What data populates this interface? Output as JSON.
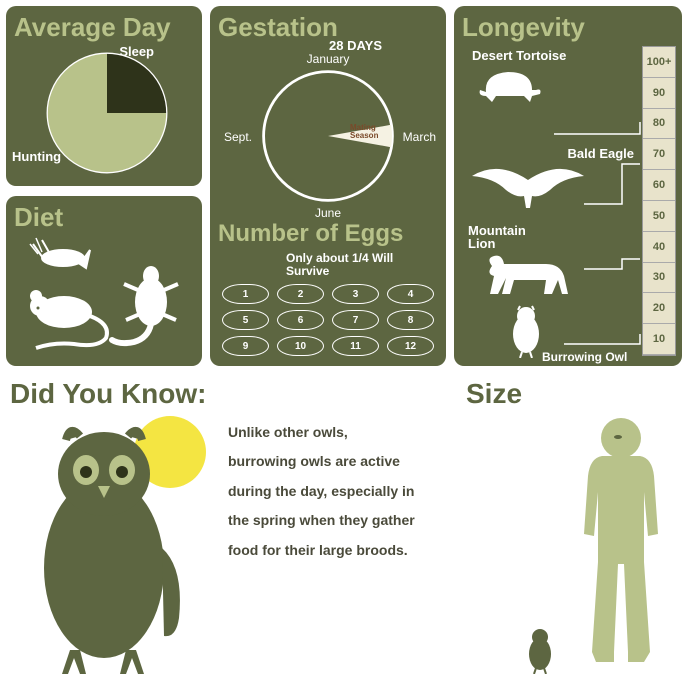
{
  "colors": {
    "olive": "#5d6641",
    "sage": "#b8c28a",
    "dark": "#2e331a",
    "white": "#ffffff",
    "cream": "#f5f2e3",
    "yellow": "#f4e542"
  },
  "avgDay": {
    "title": "Average Day",
    "labels": {
      "sleep": "Sleep",
      "hunting": "Hunting"
    },
    "slices": {
      "sleepPct": 25,
      "huntingPct": 75
    }
  },
  "diet": {
    "title": "Diet"
  },
  "gestation": {
    "title": "Gestation",
    "duration": "28 DAYS",
    "months": {
      "jan": "January",
      "mar": "March",
      "jun": "June",
      "sep": "Sept."
    },
    "matingLabel": "Mating Season"
  },
  "eggs": {
    "title": "Number of Eggs",
    "subtitle": "Only about 1/4 Will Survive",
    "values": [
      "1",
      "2",
      "3",
      "4",
      "5",
      "6",
      "7",
      "8",
      "9",
      "10",
      "11",
      "12"
    ]
  },
  "longevity": {
    "title": "Longevity",
    "scale": [
      "100+",
      "90",
      "80",
      "70",
      "60",
      "50",
      "40",
      "30",
      "20",
      "10"
    ],
    "animals": {
      "tortoise": "Desert Tortoise",
      "eagle": "Bald Eagle",
      "lion": "Mountain Lion",
      "owl": "Burrowing Owl"
    }
  },
  "dyk": {
    "title": "Did You Know:",
    "text": "Unlike other owls, burrowing owls are active during the day, especially in the spring when they gather food for their large broods."
  },
  "size": {
    "title": "Size"
  }
}
